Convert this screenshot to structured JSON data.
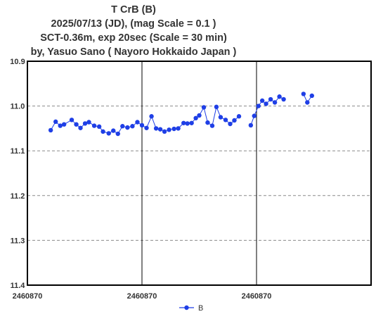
{
  "title_lines": [
    "T CrB  (B)",
    "2025/07/13 (JD),   (mag Scale = 0.1 )",
    "SCT-0.36m, exp 20sec (Scale = 30 min)",
    "by, Yasuo Sano ( Nayoro Hokkaido Japan )"
  ],
  "colors": {
    "series": "#1f3fe6",
    "frame": "#000000",
    "grid": "#8a8a8a"
  },
  "chart_data": {
    "type": "line",
    "title": "T CrB  (B)",
    "xlabel": "",
    "ylabel": "",
    "y_inverted": true,
    "ylim": [
      10.9,
      11.4
    ],
    "y_ticks": [
      "10.9",
      "11.0",
      "11.1",
      "11.2",
      "11.3",
      "11.4"
    ],
    "y_tick_values": [
      10.9,
      11.0,
      11.1,
      11.2,
      11.3,
      11.4
    ],
    "xlim": [
      0,
      90
    ],
    "x_unit": "minutes from left edge of plot (Scale = 30 min per division)",
    "x_ticks": [
      "2460870",
      "2460870",
      "2460870"
    ],
    "x_tick_values": [
      0,
      30,
      60
    ],
    "x_gridlines_at": [
      30,
      60
    ],
    "y_gridlines": "dashed",
    "legend": {
      "position": "bottom-center",
      "entries": [
        "B"
      ]
    },
    "series": [
      {
        "name": "B",
        "x": [
          6.1,
          7.4,
          8.6,
          9.6,
          11.6,
          12.8,
          13.9,
          15.1,
          16.1,
          17.5,
          18.8,
          19.8,
          21.3,
          22.5,
          23.7,
          24.9,
          26.2,
          27.5,
          28.8,
          30.0,
          31.2,
          32.5,
          33.7,
          34.8,
          35.9,
          37.1,
          38.4,
          39.5,
          40.9,
          41.9,
          43.0,
          44.1,
          45.0,
          46.2,
          47.2,
          48.4,
          49.5,
          50.6,
          51.9,
          53.1,
          54.2,
          55.4,
          58.5,
          59.4,
          60.5,
          61.5,
          62.5,
          63.7,
          64.8,
          66.0,
          67.1,
          72.3,
          73.3,
          74.5
        ],
        "values": [
          11.054,
          11.035,
          11.044,
          11.041,
          11.031,
          11.041,
          11.049,
          11.039,
          11.036,
          11.044,
          11.046,
          11.057,
          11.061,
          11.055,
          11.062,
          11.045,
          11.048,
          11.045,
          11.036,
          11.043,
          11.049,
          11.023,
          11.05,
          11.052,
          11.057,
          11.053,
          11.051,
          11.05,
          11.038,
          11.039,
          11.038,
          11.027,
          11.021,
          11.003,
          11.037,
          11.044,
          11.002,
          11.025,
          11.031,
          11.04,
          11.032,
          11.023,
          11.043,
          11.022,
          11.0,
          10.988,
          10.995,
          10.985,
          10.992,
          10.979,
          10.985,
          10.973,
          10.992,
          10.977
        ]
      }
    ]
  }
}
